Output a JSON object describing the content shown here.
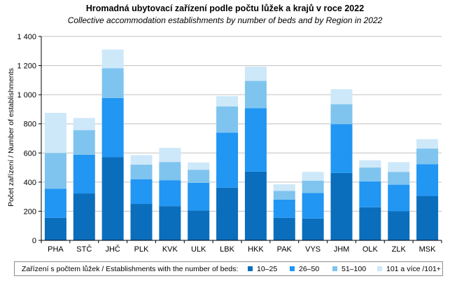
{
  "chart_data": {
    "type": "bar",
    "stacked": true,
    "title": "Hromadná ubytovací zařízení podle počtu lůžek a krajů v roce 2022",
    "subtitle": "Collective accommodation establishments by number of beds and by Region in 2022",
    "ylabel": "Počet zařízení / Number of establishments",
    "xlabel": "",
    "ylim": [
      0,
      1400
    ],
    "yticks": [
      0,
      200,
      400,
      600,
      800,
      1000,
      1200,
      1400
    ],
    "ytick_labels": [
      "0",
      "200",
      "400",
      "600",
      "800",
      "1 000",
      "1 200",
      "1 400"
    ],
    "grid": true,
    "categories": [
      "PHA",
      "STČ",
      "JHČ",
      "PLK",
      "KVK",
      "ULK",
      "LBK",
      "HKK",
      "PAK",
      "VYS",
      "JHM",
      "OLK",
      "ZLK",
      "MSK"
    ],
    "series": [
      {
        "name": "10–25",
        "color": "#0a6ebd",
        "values": [
          155,
          322,
          572,
          250,
          235,
          205,
          362,
          472,
          155,
          150,
          463,
          227,
          200,
          305
        ]
      },
      {
        "name": "26–50",
        "color": "#2196f3",
        "values": [
          200,
          265,
          405,
          170,
          178,
          190,
          378,
          435,
          125,
          175,
          335,
          178,
          182,
          217
        ]
      },
      {
        "name": "51–100",
        "color": "#7fc4ef",
        "values": [
          245,
          170,
          205,
          100,
          125,
          90,
          180,
          188,
          60,
          85,
          137,
          95,
          87,
          108
        ]
      },
      {
        "name": "101 a více /101+",
        "color": "#cde8f9",
        "values": [
          275,
          83,
          128,
          65,
          97,
          50,
          70,
          98,
          45,
          60,
          103,
          50,
          68,
          65
        ]
      }
    ],
    "legend_title": "Zařízení s počtem lůžek / Establishments with the number of beds:",
    "legend_position": "bottom"
  }
}
